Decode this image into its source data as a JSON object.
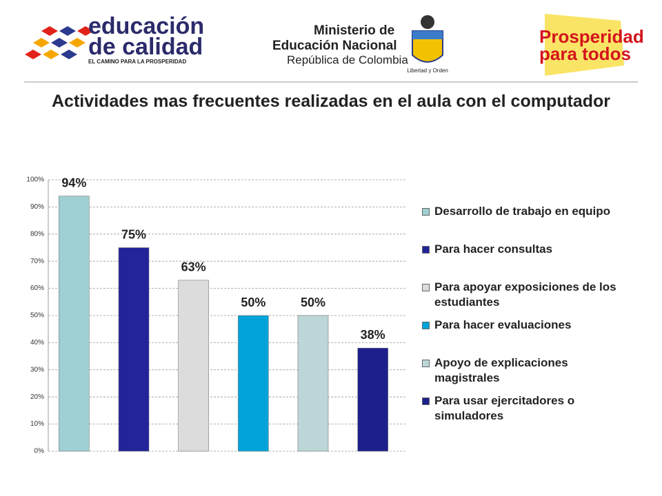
{
  "header": {
    "logo_left": {
      "line1": "educación",
      "line2": "de calidad",
      "tagline": "EL CAMINO PARA LA PROSPERIDAD"
    },
    "ministry": {
      "line1": "Ministerio de",
      "line2": "Educación Nacional",
      "line3": "República de Colombia",
      "motto": "Libertad y Orden"
    },
    "logo_right": {
      "line1": "Prosperidad",
      "line2": "para todos"
    }
  },
  "chart_data": {
    "type": "bar",
    "title": "Actividades mas frecuentes realizadas en el aula con el computador",
    "categories": [
      "Desarrollo de trabajo en equipo",
      "Para hacer consultas",
      "Para apoyar exposiciones de los estudiantes",
      "Para hacer evaluaciones",
      "Apoyo de explicaciones magistrales",
      "Para usar ejercitadores o simuladores"
    ],
    "values": [
      94,
      75,
      63,
      50,
      50,
      38
    ],
    "value_labels": [
      "94%",
      "75%",
      "63%",
      "50%",
      "50%",
      "38%"
    ],
    "colors": [
      "#9fd0d3",
      "#23239a",
      "#dcdcdc",
      "#00a3da",
      "#bdd6d8",
      "#1d208c"
    ],
    "ylim": [
      0,
      100
    ],
    "yticks": [
      {
        "value": 0,
        "label": "0%"
      },
      {
        "value": 10,
        "label": "10%"
      },
      {
        "value": 20,
        "label": "20%"
      },
      {
        "value": 30,
        "label": "30%"
      },
      {
        "value": 40,
        "label": "40%"
      },
      {
        "value": 50,
        "label": "50%"
      },
      {
        "value": 60,
        "label": "60%"
      },
      {
        "value": 70,
        "label": "70%"
      },
      {
        "value": 80,
        "label": "80%"
      },
      {
        "value": 90,
        "label": "90%"
      },
      {
        "value": 100,
        "label": "100%"
      }
    ],
    "grid": true,
    "legend": "right"
  }
}
